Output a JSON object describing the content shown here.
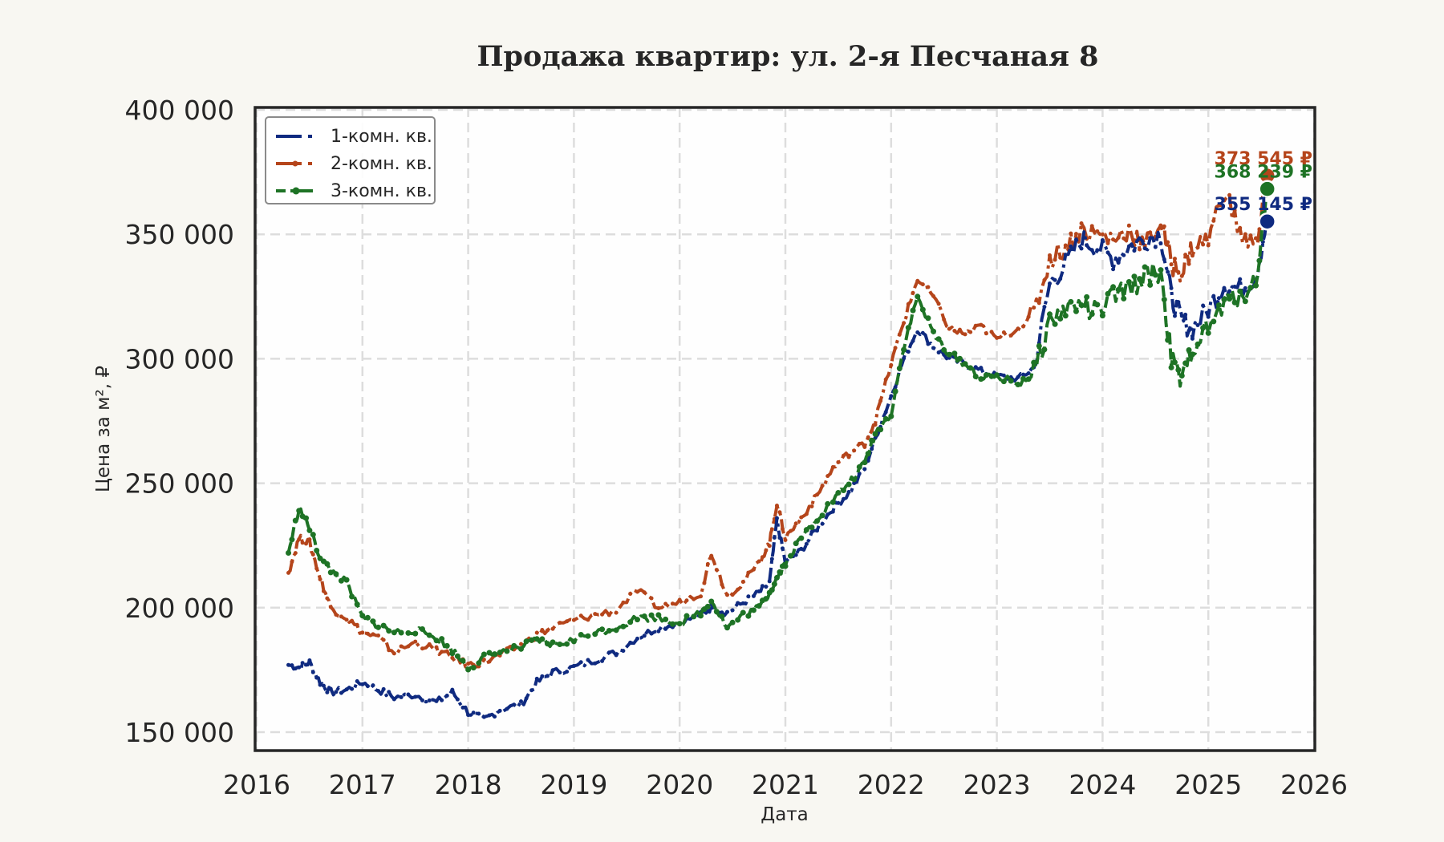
{
  "title": "Продажа квартир: ул. 2-я Песчаная 8",
  "chart_data": {
    "type": "line",
    "title": "Продажа квартир: ул. 2-я Песчаная 8",
    "xlabel": "Дата",
    "ylabel": "Цена за м², ₽",
    "xlim": [
      2016.0,
      2026.0
    ],
    "ylim": [
      142000,
      400000
    ],
    "x_ticks": [
      "2016",
      "2017",
      "2018",
      "2019",
      "2020",
      "2021",
      "2022",
      "2023",
      "2024",
      "2025",
      "2026"
    ],
    "y_ticks": [
      "150 000",
      "200 000",
      "250 000",
      "300 000",
      "350 000",
      "400 000"
    ],
    "y_tick_values": [
      150000,
      200000,
      250000,
      300000,
      350000,
      400000
    ],
    "grid": true,
    "legend_position": "upper left",
    "series": [
      {
        "name": "1-комн. кв.",
        "color": "#0f2a80",
        "style": "dashdot",
        "x": [
          2016.3,
          2016.4,
          2016.5,
          2016.6,
          2016.7,
          2016.85,
          2017.0,
          2017.15,
          2017.3,
          2017.5,
          2017.7,
          2017.85,
          2018.0,
          2018.15,
          2018.3,
          2018.5,
          2018.65,
          2018.8,
          2019.0,
          2019.2,
          2019.4,
          2019.6,
          2019.8,
          2020.0,
          2020.2,
          2020.3,
          2020.45,
          2020.6,
          2020.75,
          2020.85,
          2020.92,
          2021.0,
          2021.15,
          2021.3,
          2021.45,
          2021.6,
          2021.75,
          2021.85,
          2022.0,
          2022.12,
          2022.25,
          2022.4,
          2022.55,
          2022.7,
          2022.85,
          2023.0,
          2023.2,
          2023.35,
          2023.5,
          2023.65,
          2023.8,
          2023.95,
          2024.1,
          2024.25,
          2024.4,
          2024.55,
          2024.65,
          2024.75,
          2024.85,
          2025.0,
          2025.15,
          2025.3,
          2025.45,
          2025.55
        ],
        "y": [
          177000,
          176000,
          178000,
          170000,
          166000,
          167000,
          170000,
          167000,
          164000,
          165000,
          162000,
          166000,
          158000,
          155000,
          159000,
          161000,
          170000,
          174000,
          176000,
          179000,
          182000,
          188000,
          192000,
          194000,
          197000,
          200000,
          198000,
          202000,
          206000,
          210000,
          235000,
          218000,
          223000,
          232000,
          240000,
          246000,
          256000,
          268000,
          285000,
          300000,
          312000,
          305000,
          300000,
          298000,
          295000,
          293000,
          292000,
          296000,
          330000,
          338000,
          348000,
          345000,
          340000,
          345000,
          348000,
          350000,
          325000,
          315000,
          312000,
          320000,
          330000,
          328000,
          333000,
          355145
        ]
      },
      {
        "name": "2-комн. кв.",
        "color": "#b5451b",
        "style": "dashdot",
        "x": [
          2016.3,
          2016.4,
          2016.5,
          2016.6,
          2016.7,
          2016.85,
          2017.0,
          2017.15,
          2017.3,
          2017.5,
          2017.7,
          2017.85,
          2018.0,
          2018.15,
          2018.3,
          2018.5,
          2018.65,
          2018.8,
          2019.0,
          2019.2,
          2019.4,
          2019.6,
          2019.8,
          2020.0,
          2020.2,
          2020.3,
          2020.45,
          2020.6,
          2020.75,
          2020.85,
          2020.92,
          2021.0,
          2021.15,
          2021.3,
          2021.45,
          2021.6,
          2021.75,
          2021.85,
          2022.0,
          2022.12,
          2022.25,
          2022.4,
          2022.55,
          2022.7,
          2022.85,
          2023.0,
          2023.2,
          2023.35,
          2023.5,
          2023.65,
          2023.8,
          2023.95,
          2024.1,
          2024.25,
          2024.4,
          2024.55,
          2024.65,
          2024.75,
          2024.85,
          2025.0,
          2025.15,
          2025.3,
          2025.45,
          2025.55
        ],
        "y": [
          214000,
          228000,
          226000,
          212000,
          200000,
          196000,
          190000,
          188000,
          182000,
          186000,
          183000,
          180000,
          177000,
          178000,
          181000,
          185000,
          189000,
          192000,
          195000,
          197000,
          199000,
          207000,
          200000,
          202000,
          206000,
          222000,
          205000,
          210000,
          218000,
          226000,
          242000,
          228000,
          236000,
          245000,
          256000,
          262000,
          266000,
          275000,
          298000,
          315000,
          332000,
          325000,
          312000,
          310000,
          313000,
          308000,
          312000,
          318000,
          340000,
          345000,
          352000,
          350000,
          348000,
          352000,
          345000,
          355000,
          338000,
          335000,
          345000,
          348000,
          368000,
          350000,
          345000,
          373545
        ]
      },
      {
        "name": "3-комн. кв.",
        "color": "#1e7325",
        "style": "dashed",
        "x": [
          2016.3,
          2016.4,
          2016.5,
          2016.6,
          2016.7,
          2016.85,
          2017.0,
          2017.15,
          2017.3,
          2017.5,
          2017.7,
          2017.85,
          2018.0,
          2018.15,
          2018.3,
          2018.5,
          2018.65,
          2018.8,
          2019.0,
          2019.2,
          2019.4,
          2019.6,
          2019.8,
          2020.0,
          2020.2,
          2020.3,
          2020.45,
          2020.6,
          2020.75,
          2020.85,
          2020.92,
          2021.0,
          2021.15,
          2021.3,
          2021.45,
          2021.6,
          2021.75,
          2021.85,
          2022.0,
          2022.12,
          2022.25,
          2022.4,
          2022.55,
          2022.7,
          2022.85,
          2023.0,
          2023.2,
          2023.35,
          2023.5,
          2023.65,
          2023.8,
          2023.95,
          2024.1,
          2024.25,
          2024.4,
          2024.55,
          2024.65,
          2024.75,
          2024.85,
          2025.0,
          2025.15,
          2025.3,
          2025.45,
          2025.55
        ],
        "y": [
          222000,
          240000,
          232000,
          220000,
          215000,
          210000,
          196000,
          193000,
          190000,
          191000,
          188000,
          183000,
          176000,
          180000,
          182000,
          184000,
          187000,
          185000,
          187000,
          190000,
          192000,
          196000,
          196000,
          194000,
          198000,
          203000,
          192000,
          197000,
          200000,
          206000,
          212000,
          218000,
          228000,
          236000,
          243000,
          250000,
          258000,
          270000,
          278000,
          305000,
          325000,
          310000,
          302000,
          298000,
          292000,
          293000,
          290000,
          294000,
          315000,
          320000,
          322000,
          318000,
          325000,
          328000,
          333000,
          335000,
          300000,
          290000,
          305000,
          312000,
          322000,
          326000,
          330000,
          368239
        ]
      }
    ],
    "annotations": [
      {
        "label": "373 545 ₽",
        "value": 373545,
        "series": "2-комн. кв.",
        "color": "#b5451b"
      },
      {
        "label": "368 239 ₽",
        "value": 368239,
        "series": "3-комн. кв.",
        "color": "#1e7325"
      },
      {
        "label": "355 145 ₽",
        "value": 355145,
        "series": "1-комн. кв.",
        "color": "#0f2a80"
      }
    ]
  }
}
